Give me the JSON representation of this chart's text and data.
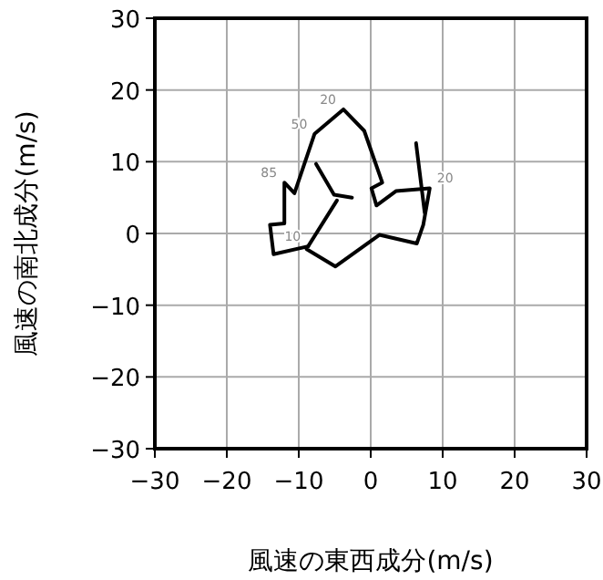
{
  "chart_data": {
    "type": "line",
    "xlabel": "風速の東西成分(m/s)",
    "ylabel": "風速の南北成分(m/s)",
    "xlim": [
      -30,
      30
    ],
    "ylim": [
      -30,
      30
    ],
    "xticks": [
      -30,
      -20,
      -10,
      0,
      10,
      20,
      30
    ],
    "yticks": [
      -30,
      -20,
      -10,
      0,
      10,
      20,
      30
    ],
    "grid": true,
    "series": [
      {
        "color": "#000000",
        "x": [
          -8.7,
          -13.5,
          -14.0,
          -12.0,
          -12.0,
          -10.6,
          -7.8,
          -3.8,
          -0.9,
          1.6,
          0.1,
          0.8,
          3.5,
          8.2,
          7.3,
          6.4,
          1.2,
          -4.9,
          -8.9
        ],
        "values": [
          -1.8,
          -2.9,
          1.2,
          1.4,
          7.1,
          5.6,
          13.9,
          17.3,
          14.3,
          7.1,
          6.3,
          3.9,
          5.9,
          6.3,
          1.2,
          -1.4,
          -0.2,
          -4.6,
          -2.2
        ]
      },
      {
        "color": "#000000",
        "x": [
          -7.6,
          -5.1,
          -2.6
        ],
        "values": [
          9.7,
          5.4,
          5.0
        ]
      },
      {
        "color": "#000000",
        "x": [
          -4.7,
          -8.7
        ],
        "values": [
          4.6,
          -1.8
        ]
      },
      {
        "color": "#000000",
        "x": [
          6.3,
          7.5
        ],
        "values": [
          12.6,
          2.9
        ]
      }
    ],
    "annotations": [
      {
        "text": "20",
        "x": -3.8,
        "y": 17.3
      },
      {
        "text": "50",
        "x": -7.8,
        "y": 13.9
      },
      {
        "text": "85",
        "x": -12.0,
        "y": 7.1
      },
      {
        "text": "10",
        "x": -8.7,
        "y": -1.8
      },
      {
        "text": "20",
        "x": 8.2,
        "y": 6.3
      }
    ]
  }
}
